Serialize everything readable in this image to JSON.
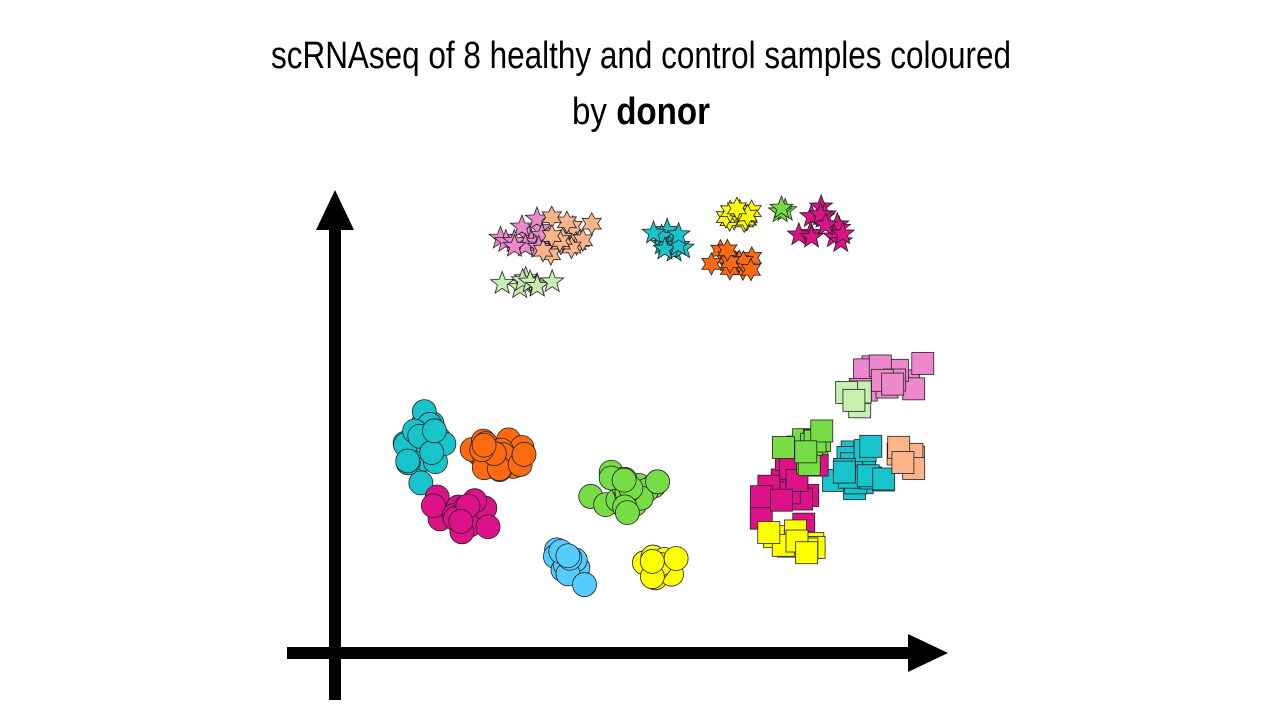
{
  "title": {
    "line1": "scRNAseq of 8 healthy and control samples coloured",
    "line2_prefix": "by",
    "line2_emphasis": "donor"
  }
}
